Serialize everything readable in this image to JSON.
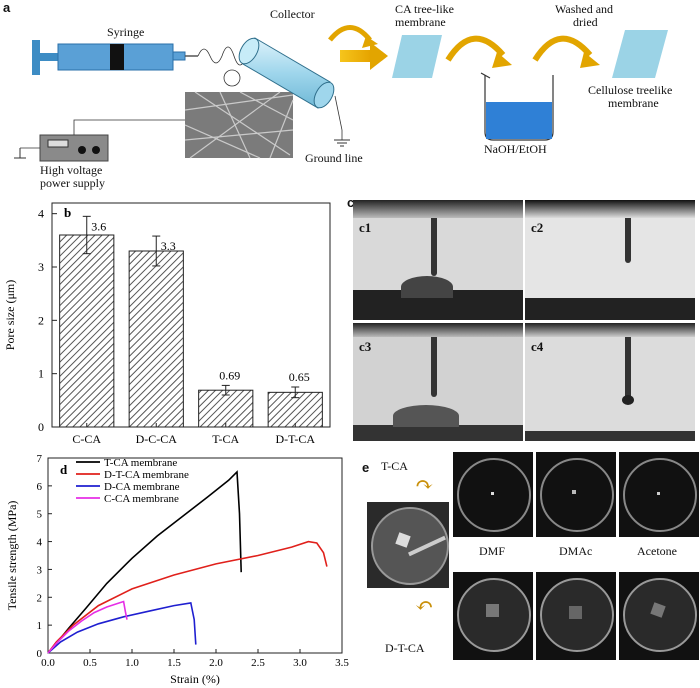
{
  "panel_a": {
    "letter": "a",
    "syringe": "Syringe",
    "collector": "Collector",
    "power_supply_line1": "High voltage",
    "power_supply_line2": "power supply",
    "ground": "Ground line",
    "ca_membrane_line1": "CA tree-like",
    "ca_membrane_line2": "membrane",
    "naoh": "NaOH/EtOH",
    "washed_line1": "Washed and",
    "washed_line2": "dried",
    "cellulose_line1": "Cellulose treelike",
    "cellulose_line2": "membrane"
  },
  "panel_c": {
    "letter": "c",
    "sub": [
      "c1",
      "c2",
      "c3",
      "c4"
    ]
  },
  "panel_e": {
    "letter": "e",
    "tca": "T-CA",
    "dtca": "D-T-CA",
    "solvents": [
      "DMF",
      "DMAc",
      "Acetone"
    ]
  },
  "chart_data": [
    {
      "panel": "b",
      "type": "bar",
      "categories": [
        "C-CA",
        "D-C-CA",
        "T-CA",
        "D-T-CA"
      ],
      "values": [
        3.6,
        3.3,
        0.69,
        0.65
      ],
      "value_labels": [
        "3.6",
        "3.3",
        "0.69",
        "0.65"
      ],
      "errors": [
        0.35,
        0.28,
        0.09,
        0.1
      ],
      "ylabel": "Pore size (μm)",
      "ylim": [
        0,
        4.2
      ],
      "yticks": [
        "0",
        "1",
        "2",
        "3",
        "4"
      ],
      "bar_color": "#8a8a8a"
    },
    {
      "panel": "d",
      "type": "line",
      "xlabel": "Strain (%)",
      "ylabel": "Tensile strength (MPa)",
      "xlim": [
        0,
        3.5
      ],
      "ylim": [
        0,
        7
      ],
      "xticks": [
        "0.0",
        "0.5",
        "1.0",
        "1.5",
        "2.0",
        "2.5",
        "3.0",
        "3.5"
      ],
      "yticks": [
        "0",
        "1",
        "2",
        "3",
        "4",
        "5",
        "6",
        "7"
      ],
      "legend_position": "top-left",
      "series": [
        {
          "name": "T-CA membrane",
          "color": "#000000",
          "x": [
            0,
            0.1,
            0.25,
            0.45,
            0.7,
            1.0,
            1.3,
            1.6,
            1.9,
            2.15,
            2.25,
            2.28,
            2.3
          ],
          "y": [
            0,
            0.35,
            0.9,
            1.6,
            2.5,
            3.4,
            4.2,
            4.9,
            5.6,
            6.2,
            6.5,
            5.0,
            2.9
          ]
        },
        {
          "name": "D-T-CA membrane",
          "color": "#e0201b",
          "x": [
            0,
            0.1,
            0.3,
            0.6,
            1.0,
            1.5,
            2.0,
            2.5,
            2.9,
            3.1,
            3.2,
            3.28,
            3.32
          ],
          "y": [
            0,
            0.4,
            1.0,
            1.7,
            2.3,
            2.8,
            3.2,
            3.5,
            3.8,
            4.0,
            3.95,
            3.6,
            3.1
          ]
        },
        {
          "name": "D-CA membrane",
          "color": "#1f1fd0",
          "x": [
            0,
            0.15,
            0.35,
            0.6,
            0.9,
            1.2,
            1.5,
            1.7,
            1.74,
            1.76
          ],
          "y": [
            0,
            0.4,
            0.75,
            1.05,
            1.3,
            1.5,
            1.7,
            1.8,
            1.2,
            0.3
          ]
        },
        {
          "name": "C-CA membrane",
          "color": "#e62ee6",
          "x": [
            0,
            0.1,
            0.25,
            0.4,
            0.55,
            0.7,
            0.85,
            0.9,
            0.92,
            0.94
          ],
          "y": [
            0,
            0.35,
            0.8,
            1.15,
            1.45,
            1.65,
            1.8,
            1.85,
            1.5,
            1.2
          ]
        }
      ]
    }
  ]
}
